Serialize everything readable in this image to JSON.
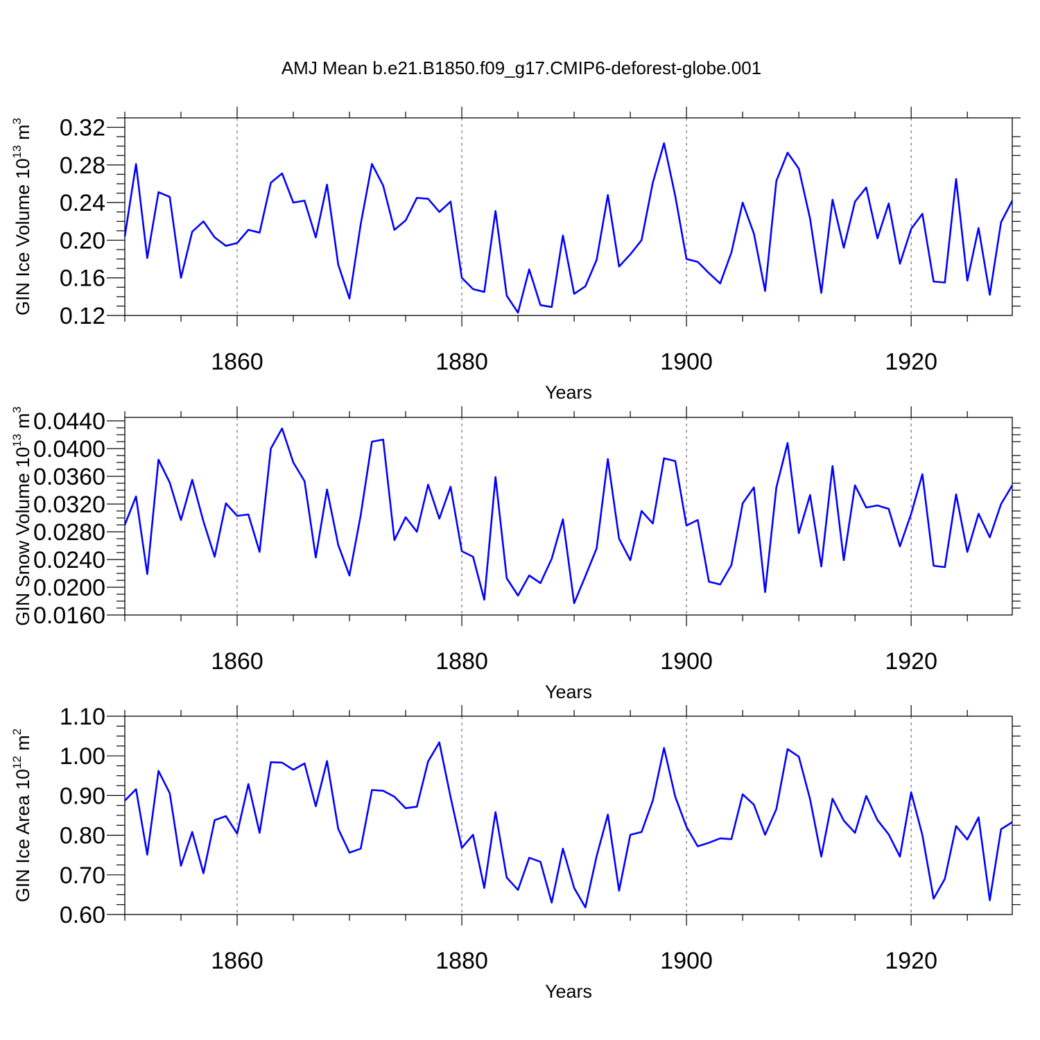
{
  "title": "AMJ Mean b.e21.B1850.f09_g17.CMIP6-deforest-globe.001",
  "series_color": "#0000ff",
  "chart_data": [
    {
      "type": "line",
      "ylabel": "GIN Ice Volume 10",
      "ylabel_sup": "13",
      "ylabel_tail": " m",
      "ylabel_tail_sup": "3",
      "xlabel": "Years",
      "xlim": [
        1850,
        1929
      ],
      "ylim": [
        0.12,
        0.33
      ],
      "xticks": [
        1860,
        1880,
        1900,
        1920
      ],
      "yticks": [
        0.12,
        0.16,
        0.2,
        0.24,
        0.28,
        0.32
      ],
      "ytick_labels": [
        "0.12",
        "0.16",
        "0.20",
        "0.24",
        "0.28",
        "0.32"
      ],
      "ytick_minor": 0.01,
      "grid": "dashed vertical at major x ticks",
      "x_start": 1850,
      "values": [
        0.204,
        0.281,
        0.181,
        0.251,
        0.246,
        0.16,
        0.209,
        0.22,
        0.203,
        0.194,
        0.197,
        0.211,
        0.208,
        0.261,
        0.271,
        0.24,
        0.242,
        0.203,
        0.259,
        0.174,
        0.138,
        0.217,
        0.281,
        0.258,
        0.211,
        0.221,
        0.245,
        0.244,
        0.23,
        0.241,
        0.16,
        0.148,
        0.145,
        0.231,
        0.141,
        0.123,
        0.169,
        0.131,
        0.129,
        0.205,
        0.143,
        0.151,
        0.179,
        0.248,
        0.172,
        0.185,
        0.2,
        0.261,
        0.303,
        0.247,
        0.18,
        0.177,
        0.165,
        0.154,
        0.187,
        0.24,
        0.207,
        0.146,
        0.263,
        0.293,
        0.276,
        0.223,
        0.144,
        0.243,
        0.192,
        0.241,
        0.256,
        0.202,
        0.239,
        0.175,
        0.212,
        0.228,
        0.156,
        0.155,
        0.265,
        0.157,
        0.213,
        0.142,
        0.219,
        0.242
      ]
    },
    {
      "type": "line",
      "ylabel": "GIN Snow Volume 10",
      "ylabel_sup": "13",
      "ylabel_tail": " m",
      "ylabel_tail_sup": "3",
      "xlabel": "Years",
      "xlim": [
        1850,
        1929
      ],
      "ylim": [
        0.016,
        0.0445
      ],
      "xticks": [
        1860,
        1880,
        1900,
        1920
      ],
      "yticks": [
        0.016,
        0.02,
        0.024,
        0.028,
        0.032,
        0.036,
        0.04,
        0.044
      ],
      "ytick_labels": [
        "0.0160",
        "0.0200",
        "0.0240",
        "0.0280",
        "0.0320",
        "0.0360",
        "0.0400",
        "0.0440"
      ],
      "ytick_minor": 0.001,
      "grid": "dashed vertical at major x ticks",
      "x_start": 1850,
      "values": [
        0.029,
        0.0331,
        0.0219,
        0.0384,
        0.0351,
        0.0297,
        0.0355,
        0.0295,
        0.0244,
        0.0321,
        0.0303,
        0.0305,
        0.0251,
        0.04,
        0.0429,
        0.038,
        0.0353,
        0.0243,
        0.0341,
        0.0261,
        0.0217,
        0.0304,
        0.041,
        0.0413,
        0.0268,
        0.0301,
        0.028,
        0.0348,
        0.0299,
        0.0345,
        0.0252,
        0.0244,
        0.0182,
        0.0359,
        0.0213,
        0.0188,
        0.0217,
        0.0206,
        0.0241,
        0.0298,
        0.0177,
        0.0216,
        0.0256,
        0.0385,
        0.027,
        0.0239,
        0.031,
        0.0292,
        0.0386,
        0.0382,
        0.0289,
        0.0297,
        0.0208,
        0.0204,
        0.0232,
        0.0321,
        0.0344,
        0.0193,
        0.0344,
        0.0408,
        0.0278,
        0.0333,
        0.023,
        0.0375,
        0.0239,
        0.0347,
        0.0315,
        0.0318,
        0.0313,
        0.0259,
        0.0306,
        0.0363,
        0.0231,
        0.0229,
        0.0334,
        0.0251,
        0.0306,
        0.0272,
        0.032,
        0.0347
      ]
    },
    {
      "type": "line",
      "ylabel": "GIN Ice Area 10",
      "ylabel_sup": "12",
      "ylabel_tail": " m",
      "ylabel_tail_sup": "2",
      "xlabel": "Years",
      "xlim": [
        1850,
        1929
      ],
      "ylim": [
        0.6,
        1.1
      ],
      "xticks": [
        1860,
        1880,
        1900,
        1920
      ],
      "yticks": [
        0.6,
        0.7,
        0.8,
        0.9,
        1.0,
        1.1
      ],
      "ytick_labels": [
        "0.60",
        "0.70",
        "0.80",
        "0.90",
        "1.00",
        "1.10"
      ],
      "ytick_minor": 0.025,
      "grid": "dashed vertical at major x ticks",
      "x_start": 1850,
      "values": [
        0.887,
        0.916,
        0.751,
        0.962,
        0.906,
        0.723,
        0.808,
        0.704,
        0.838,
        0.848,
        0.804,
        0.929,
        0.806,
        0.984,
        0.983,
        0.965,
        0.981,
        0.873,
        0.987,
        0.816,
        0.756,
        0.766,
        0.914,
        0.912,
        0.897,
        0.868,
        0.872,
        0.986,
        1.034,
        0.896,
        0.768,
        0.801,
        0.667,
        0.858,
        0.693,
        0.662,
        0.743,
        0.733,
        0.63,
        0.766,
        0.667,
        0.618,
        0.747,
        0.852,
        0.66,
        0.801,
        0.808,
        0.887,
        1.02,
        0.897,
        0.821,
        0.772,
        0.781,
        0.792,
        0.79,
        0.903,
        0.877,
        0.801,
        0.866,
        1.017,
        0.998,
        0.891,
        0.746,
        0.892,
        0.837,
        0.806,
        0.899,
        0.838,
        0.802,
        0.746,
        0.908,
        0.8,
        0.64,
        0.69,
        0.823,
        0.789,
        0.845,
        0.636,
        0.815,
        0.833
      ]
    }
  ]
}
